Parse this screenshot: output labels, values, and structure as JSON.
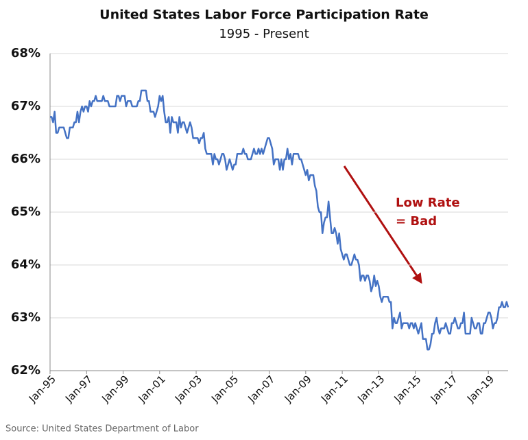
{
  "chart_data": {
    "type": "line",
    "title": "United States Labor Force Participation Rate",
    "subtitle": "1995 - Present",
    "source": "Source: United States Department of Labor",
    "annotation": [
      "Low Rate",
      "= Bad"
    ],
    "categories": [
      "Jan-95",
      null,
      null,
      null,
      null,
      null,
      null,
      null,
      null,
      null,
      null,
      null,
      null,
      null,
      null,
      null,
      null,
      null,
      null,
      null,
      null,
      null,
      null,
      null,
      "Jan-97",
      null,
      null,
      null,
      null,
      null,
      null,
      null,
      null,
      null,
      null,
      null,
      null,
      null,
      null,
      null,
      null,
      null,
      null,
      null,
      null,
      null,
      null,
      null,
      "Jan-99",
      null,
      null,
      null,
      null,
      null,
      null,
      null,
      null,
      null,
      null,
      null,
      null,
      null,
      null,
      null,
      null,
      null,
      null,
      null,
      null,
      null,
      null,
      null,
      "Jan-01",
      null,
      null,
      null,
      null,
      null,
      null,
      null,
      null,
      null,
      null,
      null,
      null,
      null,
      null,
      null,
      null,
      null,
      null,
      null,
      null,
      null,
      null,
      null,
      "Jan-03",
      null,
      null,
      null,
      null,
      null,
      null,
      null,
      null,
      null,
      null,
      null,
      null,
      null,
      null,
      null,
      null,
      null,
      null,
      null,
      null,
      null,
      null,
      null,
      "Jan-05",
      null,
      null,
      null,
      null,
      null,
      null,
      null,
      null,
      null,
      null,
      null,
      null,
      null,
      null,
      null,
      null,
      null,
      null,
      null,
      null,
      null,
      null,
      null,
      "Jan-07",
      null,
      null,
      null,
      null,
      null,
      null,
      null,
      null,
      null,
      null,
      null,
      null,
      null,
      null,
      null,
      null,
      null,
      null,
      null,
      null,
      null,
      null,
      null,
      "Jan-09",
      null,
      null,
      null,
      null,
      null,
      null,
      null,
      null,
      null,
      null,
      null,
      null,
      null,
      null,
      null,
      null,
      null,
      null,
      null,
      null,
      null,
      null,
      null,
      "Jan-11",
      null,
      null,
      null,
      null,
      null,
      null,
      null,
      null,
      null,
      null,
      null,
      null,
      null,
      null,
      null,
      null,
      null,
      null,
      null,
      null,
      null,
      null,
      null,
      "Jan-13",
      null,
      null,
      null,
      null,
      null,
      null,
      null,
      null,
      null,
      null,
      null,
      null,
      null,
      null,
      null,
      null,
      null,
      null,
      null,
      null,
      null,
      null,
      null,
      "Jan-15",
      null,
      null,
      null,
      null,
      null,
      null,
      null,
      null,
      null,
      null,
      null,
      null,
      null,
      null,
      null,
      null,
      null,
      null,
      null,
      null,
      null,
      null,
      null,
      "Jan-17",
      null,
      null,
      null,
      null,
      null,
      null,
      null,
      null,
      null,
      null,
      null,
      null,
      null,
      null,
      null,
      null,
      null,
      null,
      null,
      null,
      null,
      null,
      null,
      "Jan-19",
      null,
      null,
      null,
      null,
      null,
      null,
      null,
      null,
      null,
      null,
      null,
      null,
      null
    ],
    "series": [
      {
        "name": "Labor Force Participation Rate",
        "color": "#4472c4",
        "values": [
          66.8,
          66.8,
          66.7,
          66.9,
          66.5,
          66.5,
          66.6,
          66.6,
          66.6,
          66.6,
          66.5,
          66.4,
          66.4,
          66.6,
          66.6,
          66.6,
          66.7,
          66.7,
          66.9,
          66.7,
          66.9,
          67.0,
          66.9,
          67.0,
          67.0,
          66.9,
          67.1,
          67.0,
          67.1,
          67.1,
          67.2,
          67.1,
          67.1,
          67.1,
          67.1,
          67.2,
          67.1,
          67.1,
          67.1,
          67.0,
          67.0,
          67.0,
          67.0,
          67.0,
          67.2,
          67.2,
          67.1,
          67.2,
          67.2,
          67.2,
          67.0,
          67.1,
          67.1,
          67.1,
          67.0,
          67.0,
          67.0,
          67.0,
          67.1,
          67.1,
          67.3,
          67.3,
          67.3,
          67.3,
          67.1,
          67.1,
          66.9,
          66.9,
          66.9,
          66.8,
          66.9,
          67.0,
          67.2,
          67.1,
          67.2,
          66.9,
          66.7,
          66.7,
          66.8,
          66.5,
          66.8,
          66.7,
          66.7,
          66.7,
          66.5,
          66.8,
          66.6,
          66.7,
          66.7,
          66.6,
          66.5,
          66.6,
          66.7,
          66.6,
          66.4,
          66.4,
          66.4,
          66.4,
          66.3,
          66.4,
          66.4,
          66.5,
          66.2,
          66.1,
          66.1,
          66.1,
          66.1,
          65.9,
          66.1,
          66.0,
          66.0,
          65.9,
          66.0,
          66.1,
          66.1,
          66.0,
          65.8,
          65.9,
          66.0,
          65.9,
          65.8,
          65.9,
          65.9,
          66.1,
          66.1,
          66.1,
          66.1,
          66.2,
          66.1,
          66.1,
          66.0,
          66.0,
          66.0,
          66.1,
          66.2,
          66.1,
          66.1,
          66.2,
          66.1,
          66.2,
          66.1,
          66.2,
          66.3,
          66.4,
          66.4,
          66.3,
          66.2,
          65.9,
          66.0,
          66.0,
          66.0,
          65.8,
          66.0,
          65.8,
          66.0,
          66.0,
          66.2,
          66.0,
          66.1,
          65.9,
          66.1,
          66.1,
          66.1,
          66.1,
          66.0,
          66.0,
          65.9,
          65.8,
          65.7,
          65.8,
          65.6,
          65.7,
          65.7,
          65.7,
          65.5,
          65.4,
          65.1,
          65.0,
          65.0,
          64.6,
          64.8,
          64.9,
          64.9,
          65.2,
          64.9,
          64.6,
          64.6,
          64.7,
          64.6,
          64.4,
          64.6,
          64.3,
          64.2,
          64.1,
          64.2,
          64.2,
          64.1,
          64.0,
          64.0,
          64.1,
          64.2,
          64.1,
          64.1,
          64.0,
          63.7,
          63.8,
          63.8,
          63.7,
          63.8,
          63.8,
          63.7,
          63.5,
          63.6,
          63.8,
          63.6,
          63.7,
          63.6,
          63.4,
          63.3,
          63.4,
          63.4,
          63.4,
          63.4,
          63.3,
          63.3,
          62.8,
          63.0,
          62.9,
          62.9,
          63.0,
          63.1,
          62.8,
          62.9,
          62.9,
          62.9,
          62.9,
          62.8,
          62.9,
          62.9,
          62.8,
          62.9,
          62.8,
          62.7,
          62.8,
          62.9,
          62.6,
          62.6,
          62.6,
          62.4,
          62.4,
          62.5,
          62.7,
          62.7,
          62.9,
          63.0,
          62.8,
          62.7,
          62.8,
          62.8,
          62.8,
          62.9,
          62.8,
          62.7,
          62.7,
          62.9,
          62.9,
          63.0,
          62.9,
          62.8,
          62.8,
          62.9,
          62.9,
          63.1,
          62.7,
          62.7,
          62.7,
          62.7,
          63.0,
          62.9,
          62.8,
          62.8,
          62.9,
          62.9,
          62.7,
          62.7,
          62.9,
          62.9,
          63.0,
          63.1,
          63.1,
          63.0,
          62.8,
          62.9,
          62.9,
          63.0,
          63.2,
          63.2,
          63.3,
          63.2,
          63.2,
          63.3,
          63.2
        ]
      }
    ],
    "ylim": [
      62,
      68
    ],
    "yticks": [
      {
        "value": 62,
        "label": "62%"
      },
      {
        "value": 63,
        "label": "63%"
      },
      {
        "value": 64,
        "label": "64%"
      },
      {
        "value": 65,
        "label": "65%"
      },
      {
        "value": 66,
        "label": "66%"
      },
      {
        "value": 67,
        "label": "67%"
      },
      {
        "value": 68,
        "label": "68%"
      }
    ],
    "grid": true
  }
}
